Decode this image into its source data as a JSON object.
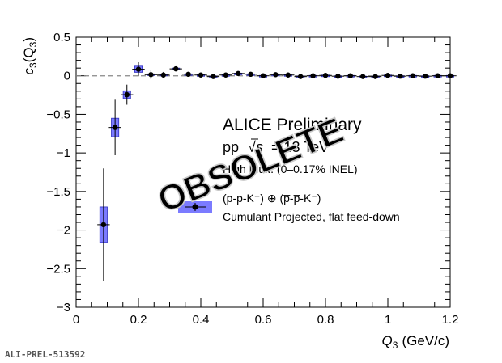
{
  "chart_data": {
    "type": "scatter",
    "xlabel_symbol": "Q",
    "xlabel_sub": "3",
    "xlabel_unit": "(GeV/c)",
    "ylabel_symbol": "c",
    "ylabel_sub": "3",
    "ylabel_arg": "(Q",
    "ylabel_arg_sub": "3",
    "ylabel_close": ")",
    "xlim": [
      0,
      1.2
    ],
    "ylim": [
      -3,
      0.5
    ],
    "xticks": [
      "0",
      "0.2",
      "0.4",
      "0.6",
      "0.8",
      "1",
      "1.2"
    ],
    "yticks": [
      "0.5",
      "0",
      "−0.5",
      "−1",
      "−1.5",
      "−2",
      "−2.5",
      "−3"
    ],
    "reference_line": 0,
    "grid": false,
    "series": [
      {
        "name": "(p-p-K⁺) ⊕ (p̅-p̅-K⁻)",
        "marker": "circle",
        "color": "#000000",
        "points": [
          {
            "x": 0.088,
            "y": -1.93,
            "stat_err": 0.73,
            "sys_err": 0.23
          },
          {
            "x": 0.125,
            "y": -0.67,
            "stat_err": 0.36,
            "sys_err": 0.12
          },
          {
            "x": 0.163,
            "y": -0.245,
            "stat_err": 0.13,
            "sys_err": 0.05
          },
          {
            "x": 0.2,
            "y": 0.085,
            "stat_err": 0.09,
            "sys_err": 0.04
          },
          {
            "x": 0.24,
            "y": 0.015,
            "stat_err": 0.06,
            "sys_err": 0.01
          },
          {
            "x": 0.28,
            "y": 0.01,
            "stat_err": 0.04,
            "sys_err": 0.01
          },
          {
            "x": 0.32,
            "y": 0.09,
            "stat_err": 0.03,
            "sys_err": 0.01
          },
          {
            "x": 0.36,
            "y": 0.02,
            "stat_err": 0.02,
            "sys_err": 0.005
          },
          {
            "x": 0.4,
            "y": 0.01,
            "stat_err": 0.02,
            "sys_err": 0.005
          },
          {
            "x": 0.44,
            "y": -0.01,
            "stat_err": 0.02,
            "sys_err": 0.005
          },
          {
            "x": 0.48,
            "y": 0.01,
            "stat_err": 0.02,
            "sys_err": 0.005
          },
          {
            "x": 0.52,
            "y": 0.03,
            "stat_err": 0.02,
            "sys_err": 0.005
          },
          {
            "x": 0.56,
            "y": 0.02,
            "stat_err": 0.02,
            "sys_err": 0.005
          },
          {
            "x": 0.6,
            "y": 0.0,
            "stat_err": 0.02,
            "sys_err": 0.005
          },
          {
            "x": 0.64,
            "y": 0.015,
            "stat_err": 0.02,
            "sys_err": 0.005
          },
          {
            "x": 0.68,
            "y": 0.01,
            "stat_err": 0.02,
            "sys_err": 0.005
          },
          {
            "x": 0.72,
            "y": -0.01,
            "stat_err": 0.02,
            "sys_err": 0.005
          },
          {
            "x": 0.76,
            "y": 0.0,
            "stat_err": 0.02,
            "sys_err": 0.005
          },
          {
            "x": 0.8,
            "y": 0.005,
            "stat_err": 0.02,
            "sys_err": 0.005
          },
          {
            "x": 0.84,
            "y": -0.005,
            "stat_err": 0.02,
            "sys_err": 0.005
          },
          {
            "x": 0.88,
            "y": 0.0,
            "stat_err": 0.02,
            "sys_err": 0.005
          },
          {
            "x": 0.92,
            "y": -0.01,
            "stat_err": 0.02,
            "sys_err": 0.005
          },
          {
            "x": 0.96,
            "y": -0.01,
            "stat_err": 0.02,
            "sys_err": 0.005
          },
          {
            "x": 1.0,
            "y": 0.005,
            "stat_err": 0.02,
            "sys_err": 0.005
          },
          {
            "x": 1.04,
            "y": -0.005,
            "stat_err": 0.02,
            "sys_err": 0.005
          },
          {
            "x": 1.08,
            "y": 0.0,
            "stat_err": 0.02,
            "sys_err": 0.005
          },
          {
            "x": 1.12,
            "y": -0.005,
            "stat_err": 0.02,
            "sys_err": 0.005
          },
          {
            "x": 1.16,
            "y": 0.0,
            "stat_err": 0.02,
            "sys_err": 0.005
          },
          {
            "x": 1.2,
            "y": 0.0,
            "stat_err": 0.02,
            "sys_err": 0.005
          }
        ]
      }
    ],
    "sys_box_color": "#7b7bff",
    "legend": {
      "placement": "center-right",
      "entry_line1": "(p-p-K⁺) ⊕ (p̅-p̅-K⁻)",
      "entry_line2": "Cumulant Projected, flat feed-down"
    },
    "annotations": {
      "collab": "ALICE Preliminary",
      "system_prefix": "pp",
      "system_sqrt": "√",
      "system_s": "s",
      "system_suffix": "= 13 TeV",
      "mult": "High Mult. (0–0.17% INEL)",
      "watermark": "OBSOLETE"
    }
  },
  "footer": {
    "id_text": "ALI-PREL-513592"
  }
}
